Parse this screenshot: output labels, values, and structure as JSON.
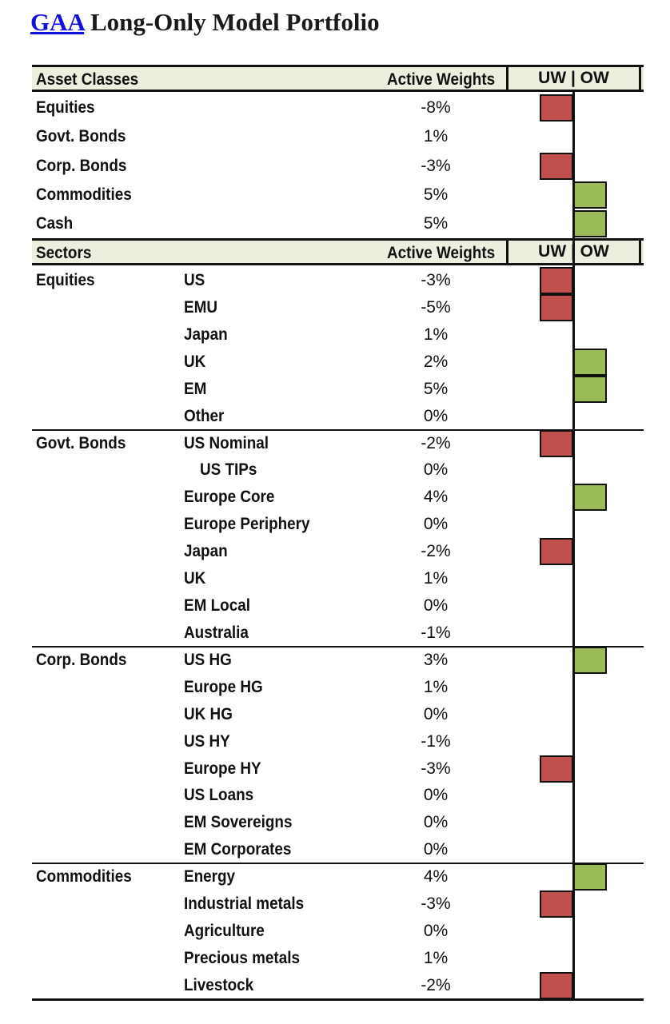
{
  "title": {
    "link": "GAA",
    "rest": " Long-Only Model Portfolio"
  },
  "headers": {
    "asset": {
      "col1": "Asset Classes",
      "col2": "Active Weights",
      "col3": "UW | OW"
    },
    "sector": {
      "col1": "Sectors",
      "col2": "Active Weights",
      "col3": "UW | OW"
    }
  },
  "asset_classes": [
    {
      "name": "Equities",
      "weight": "-8%",
      "value": -8
    },
    {
      "name": "Govt. Bonds",
      "weight": "1%",
      "value": 1
    },
    {
      "name": "Corp. Bonds",
      "weight": "-3%",
      "value": -3
    },
    {
      "name": "Commodities",
      "weight": "5%",
      "value": 5
    },
    {
      "name": "Cash",
      "weight": "5%",
      "value": 5
    }
  ],
  "sectors": [
    {
      "group": "Equities",
      "name": "US",
      "weight": "-3%",
      "value": -3
    },
    {
      "group": "",
      "name": "EMU",
      "weight": "-5%",
      "value": -5
    },
    {
      "group": "",
      "name": "Japan",
      "weight": "1%",
      "value": 1
    },
    {
      "group": "",
      "name": "UK",
      "weight": "2%",
      "value": 2
    },
    {
      "group": "",
      "name": "EM",
      "weight": "5%",
      "value": 5
    },
    {
      "group": "",
      "name": "Other",
      "weight": "0%",
      "value": 0
    },
    {
      "group": "Govt. Bonds",
      "name": "US Nominal",
      "weight": "-2%",
      "value": -2
    },
    {
      "group": "",
      "name": "US TIPs",
      "weight": "0%",
      "value": 0
    },
    {
      "group": "",
      "name": "Europe Core",
      "weight": "4%",
      "value": 4
    },
    {
      "group": "",
      "name": "Europe Periphery",
      "weight": "0%",
      "value": 0
    },
    {
      "group": "",
      "name": "Japan",
      "weight": "-2%",
      "value": -2
    },
    {
      "group": "",
      "name": "UK",
      "weight": "1%",
      "value": 1
    },
    {
      "group": "",
      "name": "EM Local",
      "weight": "0%",
      "value": 0
    },
    {
      "group": "",
      "name": "Australia",
      "weight": "-1%",
      "value": -1
    },
    {
      "group": "Corp. Bonds",
      "name": "US HG",
      "weight": "3%",
      "value": 3
    },
    {
      "group": "",
      "name": "Europe HG",
      "weight": "1%",
      "value": 1
    },
    {
      "group": "",
      "name": "UK HG",
      "weight": "0%",
      "value": 0
    },
    {
      "group": "",
      "name": "US HY",
      "weight": "-1%",
      "value": -1
    },
    {
      "group": "",
      "name": "Europe HY",
      "weight": "-3%",
      "value": -3
    },
    {
      "group": "",
      "name": "US Loans",
      "weight": "0%",
      "value": 0
    },
    {
      "group": "",
      "name": "EM Sovereigns",
      "weight": "0%",
      "value": 0
    },
    {
      "group": "",
      "name": "EM Corporates",
      "weight": "0%",
      "value": 0
    },
    {
      "group": "Commodities",
      "name": "Energy",
      "weight": "4%",
      "value": 4
    },
    {
      "group": "",
      "name": "Industrial metals",
      "weight": "-3%",
      "value": -3
    },
    {
      "group": "",
      "name": "Agriculture",
      "weight": "0%",
      "value": 0
    },
    {
      "group": "",
      "name": "Precious metals",
      "weight": "1%",
      "value": 1
    },
    {
      "group": "",
      "name": "Livestock",
      "weight": "-2%",
      "value": -2
    }
  ],
  "indicator_rule": "Rows with an absolute active weight of at least 2% show a bar: red to the left (UW) for negative, green to the right (OW) for positive.",
  "colors": {
    "underweight": "#c0504d",
    "overweight": "#9bbb59",
    "header_bg": "#eceede",
    "title_link": "#1010e0"
  }
}
